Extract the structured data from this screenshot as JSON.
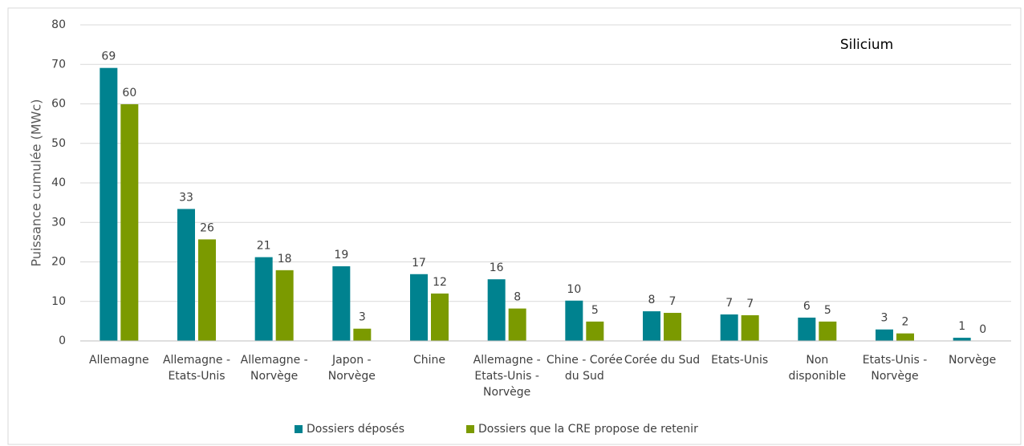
{
  "chart_data": {
    "type": "bar",
    "title": "Silicium",
    "y_label": "Puissance cumulée (MWc)",
    "categories": [
      "Allemagne",
      "Allemagne - Etats-Unis",
      "Allemagne - Norvège",
      "Japon - Norvège",
      "Chine",
      "Allemagne - Etats-Unis - Norvège",
      "Chine - Corée du Sud",
      "Corée du Sud",
      "Etats-Unis",
      "Non disponible",
      "Etats-Unis - Norvège",
      "Norvège"
    ],
    "series": [
      {
        "name": "Dossiers déposés",
        "color": "#00828f",
        "values": [
          69.1,
          33.4,
          21.2,
          18.9,
          16.9,
          15.6,
          10.2,
          7.5,
          6.7,
          5.9,
          2.9,
          0.8
        ],
        "value_labels": [
          "69",
          "33",
          "21",
          "19",
          "17",
          "16",
          "10",
          "8",
          "7",
          "6",
          "3",
          "1"
        ]
      },
      {
        "name": "Dossiers que la CRE propose de retenir",
        "color": "#7b9a00",
        "values": [
          59.9,
          25.7,
          17.9,
          3.1,
          12.0,
          8.2,
          4.9,
          7.1,
          6.5,
          4.9,
          1.9,
          0
        ],
        "value_labels": [
          "60",
          "26",
          "18",
          "3",
          "12",
          "8",
          "5",
          "7",
          "7",
          "5",
          "2",
          "0"
        ]
      }
    ],
    "ylim": [
      0,
      80
    ],
    "yticks": [
      0,
      10,
      20,
      30,
      40,
      50,
      60,
      70,
      80
    ],
    "grid": true,
    "legend": "bottom"
  }
}
